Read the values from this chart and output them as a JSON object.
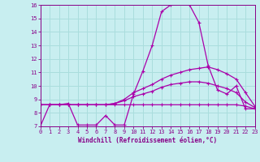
{
  "xlabel": "Windchill (Refroidissement éolien,°C)",
  "x": [
    0,
    1,
    2,
    3,
    4,
    5,
    6,
    7,
    8,
    9,
    10,
    11,
    12,
    13,
    14,
    15,
    16,
    17,
    18,
    19,
    20,
    21,
    22,
    23
  ],
  "line1": [
    7.0,
    8.6,
    8.6,
    8.7,
    7.1,
    7.1,
    7.1,
    7.8,
    7.1,
    7.1,
    9.4,
    11.1,
    13.0,
    15.5,
    16.0,
    16.4,
    16.0,
    14.7,
    11.5,
    9.7,
    9.4,
    10.0,
    8.3,
    8.3
  ],
  "line2": [
    8.6,
    8.6,
    8.6,
    8.6,
    8.6,
    8.6,
    8.6,
    8.6,
    8.7,
    9.0,
    9.5,
    9.8,
    10.1,
    10.5,
    10.8,
    11.0,
    11.2,
    11.3,
    11.4,
    11.2,
    10.9,
    10.5,
    9.5,
    8.5
  ],
  "line3": [
    8.6,
    8.6,
    8.6,
    8.6,
    8.6,
    8.6,
    8.6,
    8.6,
    8.7,
    8.9,
    9.2,
    9.4,
    9.6,
    9.9,
    10.1,
    10.2,
    10.3,
    10.3,
    10.2,
    10.0,
    9.8,
    9.5,
    8.8,
    8.4
  ],
  "line4": [
    8.6,
    8.6,
    8.6,
    8.6,
    8.6,
    8.6,
    8.6,
    8.6,
    8.6,
    8.6,
    8.6,
    8.6,
    8.6,
    8.6,
    8.6,
    8.6,
    8.6,
    8.6,
    8.6,
    8.6,
    8.6,
    8.6,
    8.5,
    8.3
  ],
  "line_color": "#aa00aa",
  "bg_color": "#c8eef0",
  "grid_color": "#aadddd",
  "text_color": "#880088",
  "ylim": [
    7,
    16
  ],
  "xlim": [
    0,
    23
  ],
  "yticks": [
    7,
    8,
    9,
    10,
    11,
    12,
    13,
    14,
    15,
    16
  ],
  "xticks": [
    0,
    1,
    2,
    3,
    4,
    5,
    6,
    7,
    8,
    9,
    10,
    11,
    12,
    13,
    14,
    15,
    16,
    17,
    18,
    19,
    20,
    21,
    22,
    23
  ]
}
